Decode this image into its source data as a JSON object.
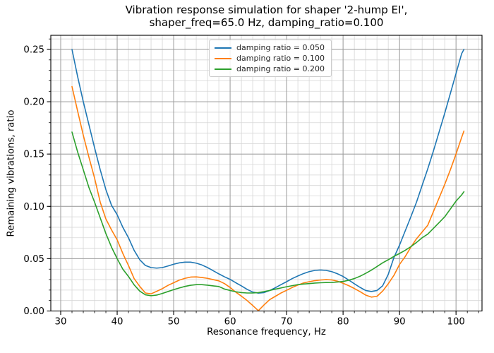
{
  "chart": {
    "title_line1": "Vibration response simulation for shaper '2-hump EI',",
    "title_line2": "shaper_freq=65.0 Hz, damping_ratio=0.100",
    "xlabel": "Resonance frequency, Hz",
    "ylabel": "Remaining vibrations, ratio"
  },
  "chart_data": {
    "type": "line",
    "title": "Vibration response simulation for shaper '2-hump EI', shaper_freq=65.0 Hz, damping_ratio=0.100",
    "xlabel": "Resonance frequency, Hz",
    "ylabel": "Remaining vibrations, ratio",
    "xlim": [
      28.25,
      104.6
    ],
    "ylim": [
      0,
      0.2635
    ],
    "grid": "both",
    "legend_position": "upper center",
    "x_major_ticks": [
      {
        "v": 30,
        "label": "30"
      },
      {
        "v": 40,
        "label": "40"
      },
      {
        "v": 50,
        "label": "50"
      },
      {
        "v": 60,
        "label": "60"
      },
      {
        "v": 70,
        "label": "70"
      },
      {
        "v": 80,
        "label": "80"
      },
      {
        "v": 90,
        "label": "90"
      },
      {
        "v": 100,
        "label": "100"
      }
    ],
    "x_minor_step": 2,
    "y_major_ticks": [
      {
        "v": 0.0,
        "label": "0.00"
      },
      {
        "v": 0.05,
        "label": "0.05"
      },
      {
        "v": 0.1,
        "label": "0.10"
      },
      {
        "v": 0.15,
        "label": "0.15"
      },
      {
        "v": 0.2,
        "label": "0.20"
      },
      {
        "v": 0.25,
        "label": "0.25"
      }
    ],
    "y_minor_step": 0.01,
    "grid_colors": {
      "major": "#9b9b9b",
      "minor": "#d6d6d6"
    },
    "series": [
      {
        "name": "damping ratio = 0.050",
        "color": "#1f77b4",
        "points": [
          [
            32,
            0.25
          ],
          [
            33,
            0.224
          ],
          [
            34,
            0.2
          ],
          [
            35,
            0.178
          ],
          [
            36,
            0.156
          ],
          [
            37,
            0.135
          ],
          [
            38,
            0.116
          ],
          [
            39,
            0.101
          ],
          [
            40,
            0.092
          ],
          [
            41,
            0.08
          ],
          [
            42,
            0.07
          ],
          [
            43,
            0.058
          ],
          [
            44,
            0.049
          ],
          [
            45,
            0.0435
          ],
          [
            46,
            0.0415
          ],
          [
            47,
            0.041
          ],
          [
            48,
            0.0415
          ],
          [
            49,
            0.043
          ],
          [
            50,
            0.0447
          ],
          [
            51,
            0.046
          ],
          [
            52,
            0.0467
          ],
          [
            53,
            0.0467
          ],
          [
            54,
            0.0457
          ],
          [
            55,
            0.044
          ],
          [
            56,
            0.0415
          ],
          [
            57,
            0.0385
          ],
          [
            58,
            0.0355
          ],
          [
            59,
            0.0327
          ],
          [
            60,
            0.0302
          ],
          [
            61,
            0.027
          ],
          [
            62,
            0.024
          ],
          [
            63,
            0.0207
          ],
          [
            64,
            0.0181
          ],
          [
            65,
            0.0171
          ],
          [
            66,
            0.0176
          ],
          [
            67,
            0.0196
          ],
          [
            68,
            0.0222
          ],
          [
            69,
            0.0252
          ],
          [
            70,
            0.028
          ],
          [
            71,
            0.031
          ],
          [
            72,
            0.0335
          ],
          [
            73,
            0.0358
          ],
          [
            74,
            0.0376
          ],
          [
            75,
            0.0388
          ],
          [
            76,
            0.0392
          ],
          [
            77,
            0.0388
          ],
          [
            78,
            0.0376
          ],
          [
            79,
            0.0356
          ],
          [
            80,
            0.033
          ],
          [
            81,
            0.0296
          ],
          [
            82,
            0.026
          ],
          [
            83,
            0.0226
          ],
          [
            84,
            0.0196
          ],
          [
            85,
            0.0186
          ],
          [
            86,
            0.0196
          ],
          [
            87,
            0.024
          ],
          [
            88,
            0.035
          ],
          [
            89,
            0.051
          ],
          [
            90,
            0.063
          ],
          [
            91,
            0.0765
          ],
          [
            92,
            0.09
          ],
          [
            93,
            0.104
          ],
          [
            94,
            0.12
          ],
          [
            95,
            0.136
          ],
          [
            96,
            0.153
          ],
          [
            97,
            0.171
          ],
          [
            98,
            0.189
          ],
          [
            99,
            0.208
          ],
          [
            100,
            0.227
          ],
          [
            101,
            0.246
          ],
          [
            101.4,
            0.25
          ]
        ]
      },
      {
        "name": "damping ratio = 0.100",
        "color": "#ff7f0e",
        "points": [
          [
            32,
            0.2145
          ],
          [
            33,
            0.191
          ],
          [
            34,
            0.168
          ],
          [
            35,
            0.147
          ],
          [
            36,
            0.127
          ],
          [
            37,
            0.104
          ],
          [
            38,
            0.088
          ],
          [
            39,
            0.0775
          ],
          [
            40,
            0.068
          ],
          [
            41,
            0.055
          ],
          [
            42,
            0.0435
          ],
          [
            43,
            0.031
          ],
          [
            44,
            0.0235
          ],
          [
            45,
            0.0172
          ],
          [
            46,
            0.0164
          ],
          [
            47,
            0.0188
          ],
          [
            48,
            0.0214
          ],
          [
            49,
            0.0245
          ],
          [
            50,
            0.027
          ],
          [
            51,
            0.0295
          ],
          [
            52,
            0.0312
          ],
          [
            53,
            0.0324
          ],
          [
            54,
            0.0326
          ],
          [
            55,
            0.032
          ],
          [
            56,
            0.0312
          ],
          [
            57,
            0.03
          ],
          [
            58,
            0.0288
          ],
          [
            59,
            0.0262
          ],
          [
            60,
            0.0225
          ],
          [
            61,
            0.018
          ],
          [
            62,
            0.0142
          ],
          [
            63,
            0.01
          ],
          [
            64,
            0.0053
          ],
          [
            65,
            0.0003
          ],
          [
            66,
            0.0058
          ],
          [
            67,
            0.0108
          ],
          [
            68,
            0.014
          ],
          [
            69,
            0.0172
          ],
          [
            70,
            0.0198
          ],
          [
            71,
            0.0225
          ],
          [
            72,
            0.0248
          ],
          [
            73,
            0.0268
          ],
          [
            74,
            0.028
          ],
          [
            75,
            0.029
          ],
          [
            76,
            0.0296
          ],
          [
            77,
            0.03
          ],
          [
            78,
            0.0297
          ],
          [
            79,
            0.0285
          ],
          [
            80,
            0.0265
          ],
          [
            81,
            0.0242
          ],
          [
            82,
            0.0215
          ],
          [
            83,
            0.0185
          ],
          [
            84,
            0.0152
          ],
          [
            85,
            0.0133
          ],
          [
            86,
            0.014
          ],
          [
            87,
            0.019
          ],
          [
            88,
            0.026
          ],
          [
            89,
            0.034
          ],
          [
            90,
            0.0445
          ],
          [
            91,
            0.052
          ],
          [
            92,
            0.061
          ],
          [
            93,
            0.069
          ],
          [
            94,
            0.0755
          ],
          [
            95,
            0.082
          ],
          [
            96,
            0.095
          ],
          [
            97,
            0.108
          ],
          [
            98,
            0.121
          ],
          [
            99,
            0.135
          ],
          [
            100,
            0.15
          ],
          [
            101,
            0.166
          ],
          [
            101.4,
            0.172
          ]
        ]
      },
      {
        "name": "damping ratio = 0.200",
        "color": "#2ca02c",
        "points": [
          [
            32,
            0.171
          ],
          [
            33,
            0.152
          ],
          [
            34,
            0.135
          ],
          [
            35,
            0.118
          ],
          [
            36,
            0.104
          ],
          [
            37,
            0.089
          ],
          [
            38,
            0.074
          ],
          [
            39,
            0.061
          ],
          [
            40,
            0.05
          ],
          [
            41,
            0.04
          ],
          [
            42,
            0.033
          ],
          [
            43,
            0.025
          ],
          [
            44,
            0.019
          ],
          [
            45,
            0.0155
          ],
          [
            46,
            0.0146
          ],
          [
            47,
            0.0152
          ],
          [
            48,
            0.0168
          ],
          [
            49,
            0.0186
          ],
          [
            50,
            0.0204
          ],
          [
            51,
            0.022
          ],
          [
            52,
            0.0235
          ],
          [
            53,
            0.0246
          ],
          [
            54,
            0.0252
          ],
          [
            55,
            0.0252
          ],
          [
            56,
            0.0247
          ],
          [
            57,
            0.024
          ],
          [
            58,
            0.0234
          ],
          [
            59,
            0.021
          ],
          [
            60,
            0.0196
          ],
          [
            61,
            0.0184
          ],
          [
            62,
            0.0176
          ],
          [
            63,
            0.0172
          ],
          [
            64,
            0.0172
          ],
          [
            65,
            0.0176
          ],
          [
            66,
            0.0185
          ],
          [
            67,
            0.0196
          ],
          [
            68,
            0.0209
          ],
          [
            69,
            0.022
          ],
          [
            70,
            0.0232
          ],
          [
            71,
            0.0242
          ],
          [
            72,
            0.0252
          ],
          [
            73,
            0.0258
          ],
          [
            74,
            0.0262
          ],
          [
            75,
            0.0267
          ],
          [
            76,
            0.027
          ],
          [
            77,
            0.0272
          ],
          [
            78,
            0.0273
          ],
          [
            79,
            0.0277
          ],
          [
            80,
            0.0282
          ],
          [
            81,
            0.0294
          ],
          [
            82,
            0.031
          ],
          [
            83,
            0.0332
          ],
          [
            84,
            0.036
          ],
          [
            85,
            0.039
          ],
          [
            86,
            0.0425
          ],
          [
            87,
            0.046
          ],
          [
            88,
            0.049
          ],
          [
            89,
            0.0522
          ],
          [
            90,
            0.055
          ],
          [
            91,
            0.058
          ],
          [
            92,
            0.0615
          ],
          [
            93,
            0.0655
          ],
          [
            94,
            0.07
          ],
          [
            95,
            0.0735
          ],
          [
            96,
            0.079
          ],
          [
            97,
            0.0845
          ],
          [
            98,
            0.09
          ],
          [
            99,
            0.0975
          ],
          [
            100,
            0.105
          ],
          [
            101,
            0.111
          ],
          [
            101.4,
            0.114
          ]
        ]
      }
    ]
  }
}
